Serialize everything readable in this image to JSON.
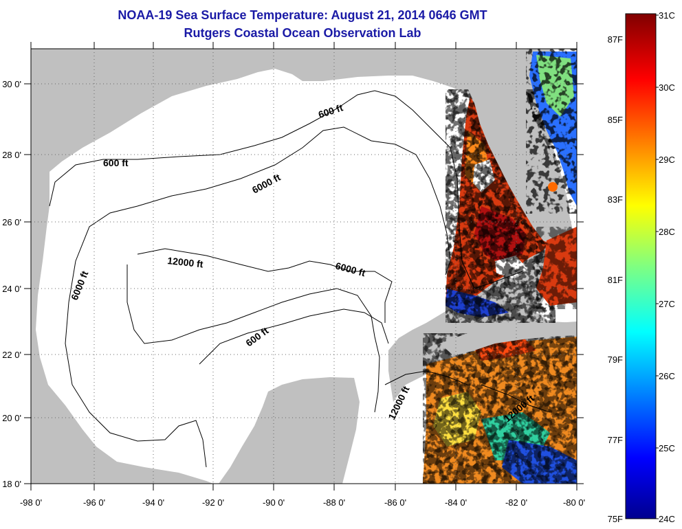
{
  "title": {
    "line1": "NOAA-19 Sea Surface Temperature:  August 21, 2014 0646 GMT",
    "line2": "Rutgers Coastal Ocean Observation Lab"
  },
  "map": {
    "lon_range": [
      -98,
      -80
    ],
    "lat_range": [
      18,
      31
    ],
    "x_ticks": [
      "-98 0'",
      "-96 0'",
      "-94 0'",
      "-92 0'",
      "-90 0'",
      "-88 0'",
      "-86 0'",
      "-84 0'",
      "-82 0'",
      "-80 0'"
    ],
    "y_ticks": [
      "18 0'",
      "20 0'",
      "22 0'",
      "24 0'",
      "26 0'",
      "28 0'",
      "30 0'"
    ],
    "contour_labels": [
      "600 ft",
      "600 ft",
      "6000 ft",
      "12000 ft",
      "6000 ft",
      "6000 ft",
      "600 ft",
      "12000 ft",
      "12000 ft"
    ]
  },
  "colorbar": {
    "celsius": [
      "31C",
      "30C",
      "29C",
      "28C",
      "27C",
      "26C",
      "25C",
      "24C"
    ],
    "fahrenheit": [
      "87F",
      "85F",
      "83F",
      "81F",
      "79F",
      "77F",
      "75F"
    ]
  },
  "colors": {
    "title": "#1a1aa6",
    "land": "#c0c0c0",
    "ocean": "#ffffff",
    "scale": [
      "#00008f",
      "#0000ff",
      "#0080ff",
      "#00ffff",
      "#80ff80",
      "#ffff00",
      "#ff8000",
      "#ff0000",
      "#800000"
    ]
  }
}
